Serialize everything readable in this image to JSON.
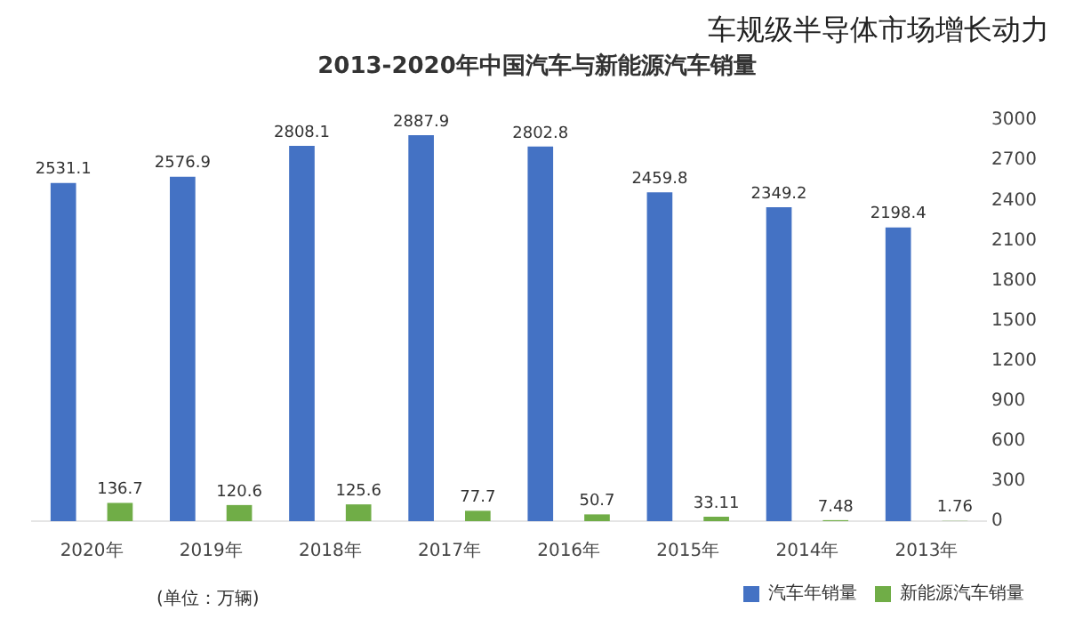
{
  "chart_data": {
    "type": "bar",
    "title": "2013-2020年中国汽车与新能源汽车销量",
    "categories": [
      "2020年",
      "2019年",
      "2018年",
      "2017年",
      "2016年",
      "2015年",
      "2014年",
      "2013年"
    ],
    "series": [
      {
        "name": "汽车年销量",
        "color": "#4472c4",
        "values": [
          2531.1,
          2576.9,
          2808.1,
          2887.9,
          2802.8,
          2459.8,
          2349.2,
          2198.4
        ]
      },
      {
        "name": "新能源汽车销量",
        "color": "#70ad47",
        "values": [
          136.7,
          120.6,
          125.6,
          77.7,
          50.7,
          33.11,
          7.48,
          1.76
        ]
      }
    ],
    "ylim": [
      0,
      3000
    ],
    "yticks": [
      0,
      300,
      600,
      900,
      1200,
      1500,
      1800,
      2100,
      2400,
      2700,
      3000
    ],
    "data_labels": true,
    "legend": "bottom",
    "annotations": [
      "车规级半导体市场增长动力",
      "(单位：万辆)"
    ]
  }
}
